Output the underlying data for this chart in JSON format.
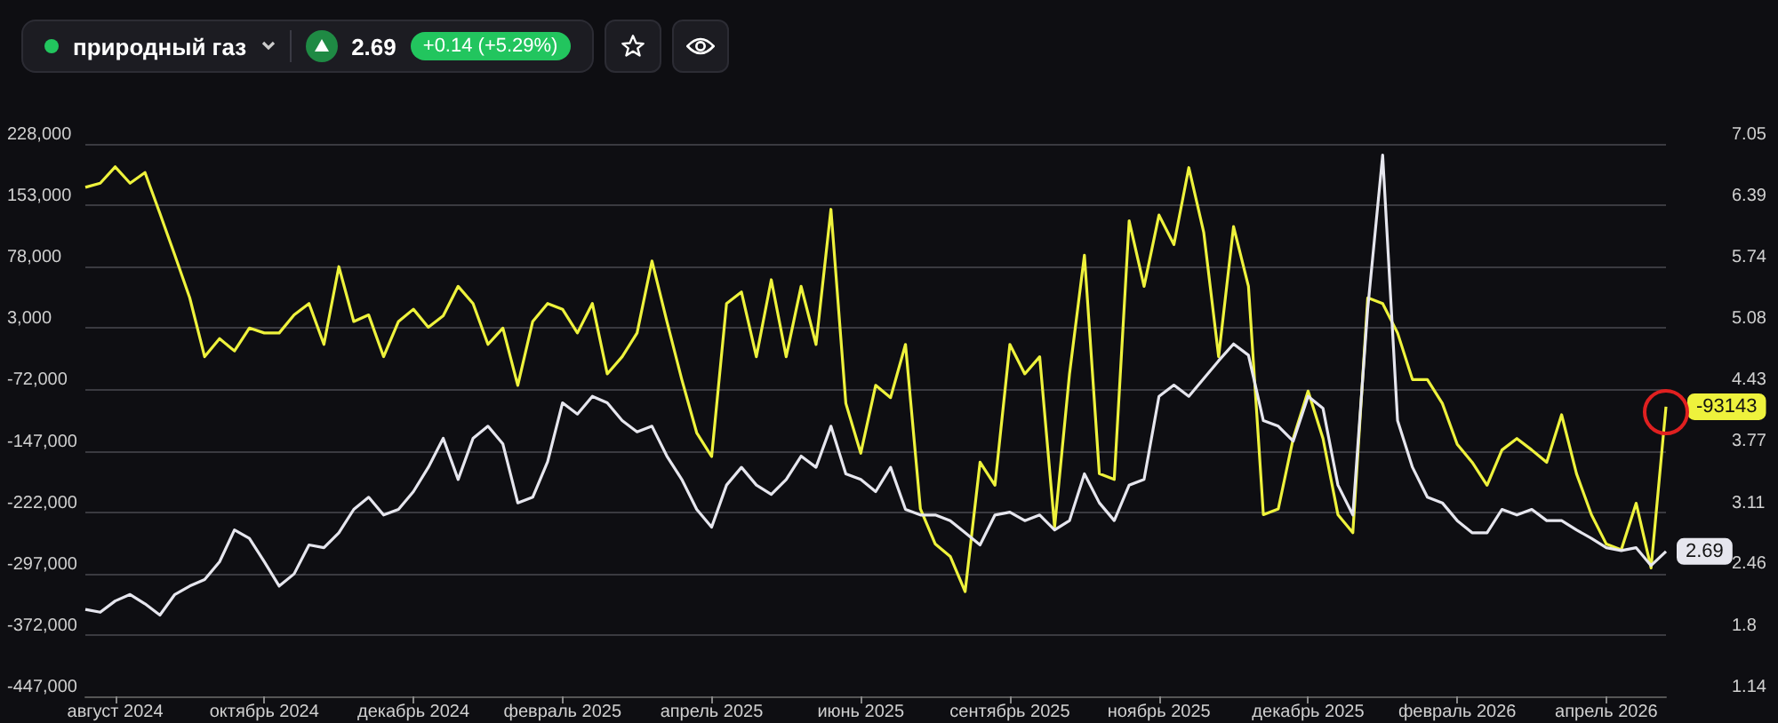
{
  "chart_data": {
    "type": "line",
    "title": "природный газ",
    "annotations": [
      "2.69",
      "+0.14 (+5.29%)"
    ],
    "categories": [
      null,
      null,
      "август 2024",
      null,
      null,
      null,
      null,
      null,
      null,
      null,
      null,
      null,
      "октябрь 2024",
      null,
      null,
      null,
      null,
      null,
      null,
      null,
      null,
      null,
      "декабрь 2024",
      null,
      null,
      null,
      null,
      null,
      null,
      null,
      null,
      null,
      "февраль 2025",
      null,
      null,
      null,
      null,
      null,
      null,
      null,
      null,
      null,
      "апрель 2025",
      null,
      null,
      null,
      null,
      null,
      null,
      null,
      null,
      null,
      "июнь 2025",
      null,
      null,
      null,
      null,
      null,
      null,
      null,
      null,
      null,
      "сентябрь 2025",
      null,
      null,
      null,
      null,
      null,
      null,
      null,
      null,
      null,
      "ноябрь 2025",
      null,
      null,
      null,
      null,
      null,
      null,
      null,
      null,
      null,
      "декабрь 2025",
      null,
      null,
      null,
      null,
      null,
      null,
      null,
      null,
      null,
      "февраль 2026",
      null,
      null,
      null,
      null,
      null,
      null,
      null,
      null,
      null,
      "апрель 2026",
      null,
      null,
      null,
      null
    ],
    "series": [
      {
        "color": "#eef23c",
        "axis": "y",
        "values": [
          175000,
          180000,
          200000,
          180000,
          193000,
          143000,
          92000,
          40000,
          -32000,
          -10000,
          -25000,
          3000,
          -3000,
          -3000,
          19000,
          33000,
          -17000,
          78000,
          11000,
          19000,
          -32000,
          11000,
          26000,
          4000,
          18000,
          54000,
          33000,
          -17000,
          3000,
          -67000,
          11000,
          33000,
          26000,
          -3000,
          33000,
          -53000,
          -32000,
          -3000,
          85000,
          11000,
          -60000,
          -125000,
          -154000,
          33000,
          47000,
          -32000,
          62000,
          -32000,
          54000,
          -17000,
          148000,
          -89000,
          -150000,
          -67000,
          -82000,
          -17000,
          -218000,
          -261000,
          -276000,
          -319000,
          -161000,
          -189000,
          -17000,
          -53000,
          -32000,
          -240000,
          -53000,
          92000,
          -175000,
          -182000,
          134000,
          54000,
          141000,
          105000,
          199000,
          120000,
          -32000,
          127000,
          54000,
          -225000,
          -218000,
          -132000,
          -74000,
          -132000,
          -225000,
          -247000,
          40000,
          33000,
          -3000,
          -60000,
          -60000,
          -89000,
          -139000,
          -161000,
          -189000,
          -146000,
          -132000,
          -146000,
          -161000,
          -103000,
          -175000,
          -225000,
          -261000,
          -268000,
          -211000,
          -290000,
          -93143
        ],
        "value_labels": [
          null,
          null,
          null,
          null,
          null,
          null,
          null,
          null,
          null,
          null,
          null,
          null,
          null,
          null,
          null,
          null,
          null,
          null,
          null,
          null,
          null,
          null,
          null,
          null,
          null,
          null,
          null,
          null,
          null,
          null,
          null,
          null,
          null,
          null,
          null,
          null,
          null,
          null,
          null,
          null,
          null,
          null,
          null,
          null,
          null,
          null,
          null,
          null,
          null,
          null,
          null,
          null,
          null,
          null,
          null,
          null,
          null,
          null,
          null,
          null,
          null,
          null,
          null,
          null,
          null,
          null,
          null,
          null,
          null,
          null,
          null,
          null,
          null,
          null,
          null,
          null,
          null,
          null,
          null,
          null,
          null,
          null,
          null,
          null,
          null,
          null,
          null,
          null,
          null,
          null,
          null,
          null,
          null,
          null,
          null,
          null,
          null,
          null,
          null,
          null,
          null,
          null,
          null,
          null,
          null,
          null,
          "-93143"
        ]
      },
      {
        "color": "#e6e6ee",
        "axis": "y2",
        "values": [
          2.07,
          2.04,
          2.16,
          2.23,
          2.13,
          2.01,
          2.23,
          2.32,
          2.39,
          2.58,
          2.92,
          2.83,
          2.58,
          2.32,
          2.45,
          2.76,
          2.73,
          2.89,
          3.14,
          3.27,
          3.08,
          3.14,
          3.33,
          3.59,
          3.9,
          3.46,
          3.9,
          4.03,
          3.84,
          3.21,
          3.27,
          3.65,
          4.28,
          4.16,
          4.35,
          4.28,
          4.09,
          3.97,
          4.03,
          3.71,
          3.46,
          3.14,
          2.95,
          3.4,
          3.59,
          3.4,
          3.3,
          3.46,
          3.71,
          3.59,
          4.03,
          3.52,
          3.46,
          3.33,
          3.59,
          3.14,
          3.08,
          3.08,
          3.02,
          2.89,
          2.76,
          3.08,
          3.11,
          3.02,
          3.08,
          2.92,
          3.02,
          3.52,
          3.21,
          3.02,
          3.4,
          3.46,
          4.35,
          4.47,
          4.35,
          4.54,
          4.73,
          4.91,
          4.79,
          4.09,
          4.03,
          3.87,
          4.35,
          4.22,
          3.4,
          3.08,
          5.29,
          6.93,
          4.09,
          3.59,
          3.27,
          3.21,
          3.02,
          2.89,
          2.89,
          3.14,
          3.08,
          3.14,
          3.02,
          3.02,
          2.92,
          2.83,
          2.73,
          2.7,
          2.73,
          2.54,
          2.69
        ],
        "value_labels": [
          null,
          null,
          null,
          null,
          null,
          null,
          null,
          null,
          null,
          null,
          null,
          null,
          null,
          null,
          null,
          null,
          null,
          null,
          null,
          null,
          null,
          null,
          null,
          null,
          null,
          null,
          null,
          null,
          null,
          null,
          null,
          null,
          null,
          null,
          null,
          null,
          null,
          null,
          null,
          null,
          null,
          null,
          null,
          null,
          null,
          null,
          null,
          null,
          null,
          null,
          null,
          null,
          null,
          null,
          null,
          null,
          null,
          null,
          null,
          null,
          null,
          null,
          null,
          null,
          null,
          null,
          null,
          null,
          null,
          null,
          null,
          null,
          null,
          null,
          null,
          null,
          null,
          null,
          null,
          null,
          null,
          null,
          null,
          null,
          null,
          null,
          null,
          null,
          null,
          null,
          null,
          null,
          null,
          null,
          null,
          null,
          null,
          null,
          null,
          null,
          null,
          null,
          null,
          null,
          null,
          null,
          "2.69"
        ]
      }
    ],
    "ylim": [
      -447000,
      228000
    ],
    "yticks": [
      {
        "value": -447000,
        "label": "-447,000"
      },
      {
        "value": -372000,
        "label": "-372,000"
      },
      {
        "value": -297000,
        "label": "-297,000"
      },
      {
        "value": -222000,
        "label": "-222,000"
      },
      {
        "value": -147000,
        "label": "-147,000"
      },
      {
        "value": -72000,
        "label": "-72,000"
      },
      {
        "value": 3000,
        "label": "3,000"
      },
      {
        "value": 78000,
        "label": "78,000"
      },
      {
        "value": 153000,
        "label": "153,000"
      },
      {
        "value": 228000,
        "label": "228,000"
      }
    ],
    "y2lim": [
      1.14,
      7.05
    ],
    "y2ticks": [
      1.14,
      1.8,
      2.46,
      3.11,
      3.77,
      4.43,
      5.08,
      5.74,
      6.39,
      7.05
    ],
    "grid": "y"
  }
}
